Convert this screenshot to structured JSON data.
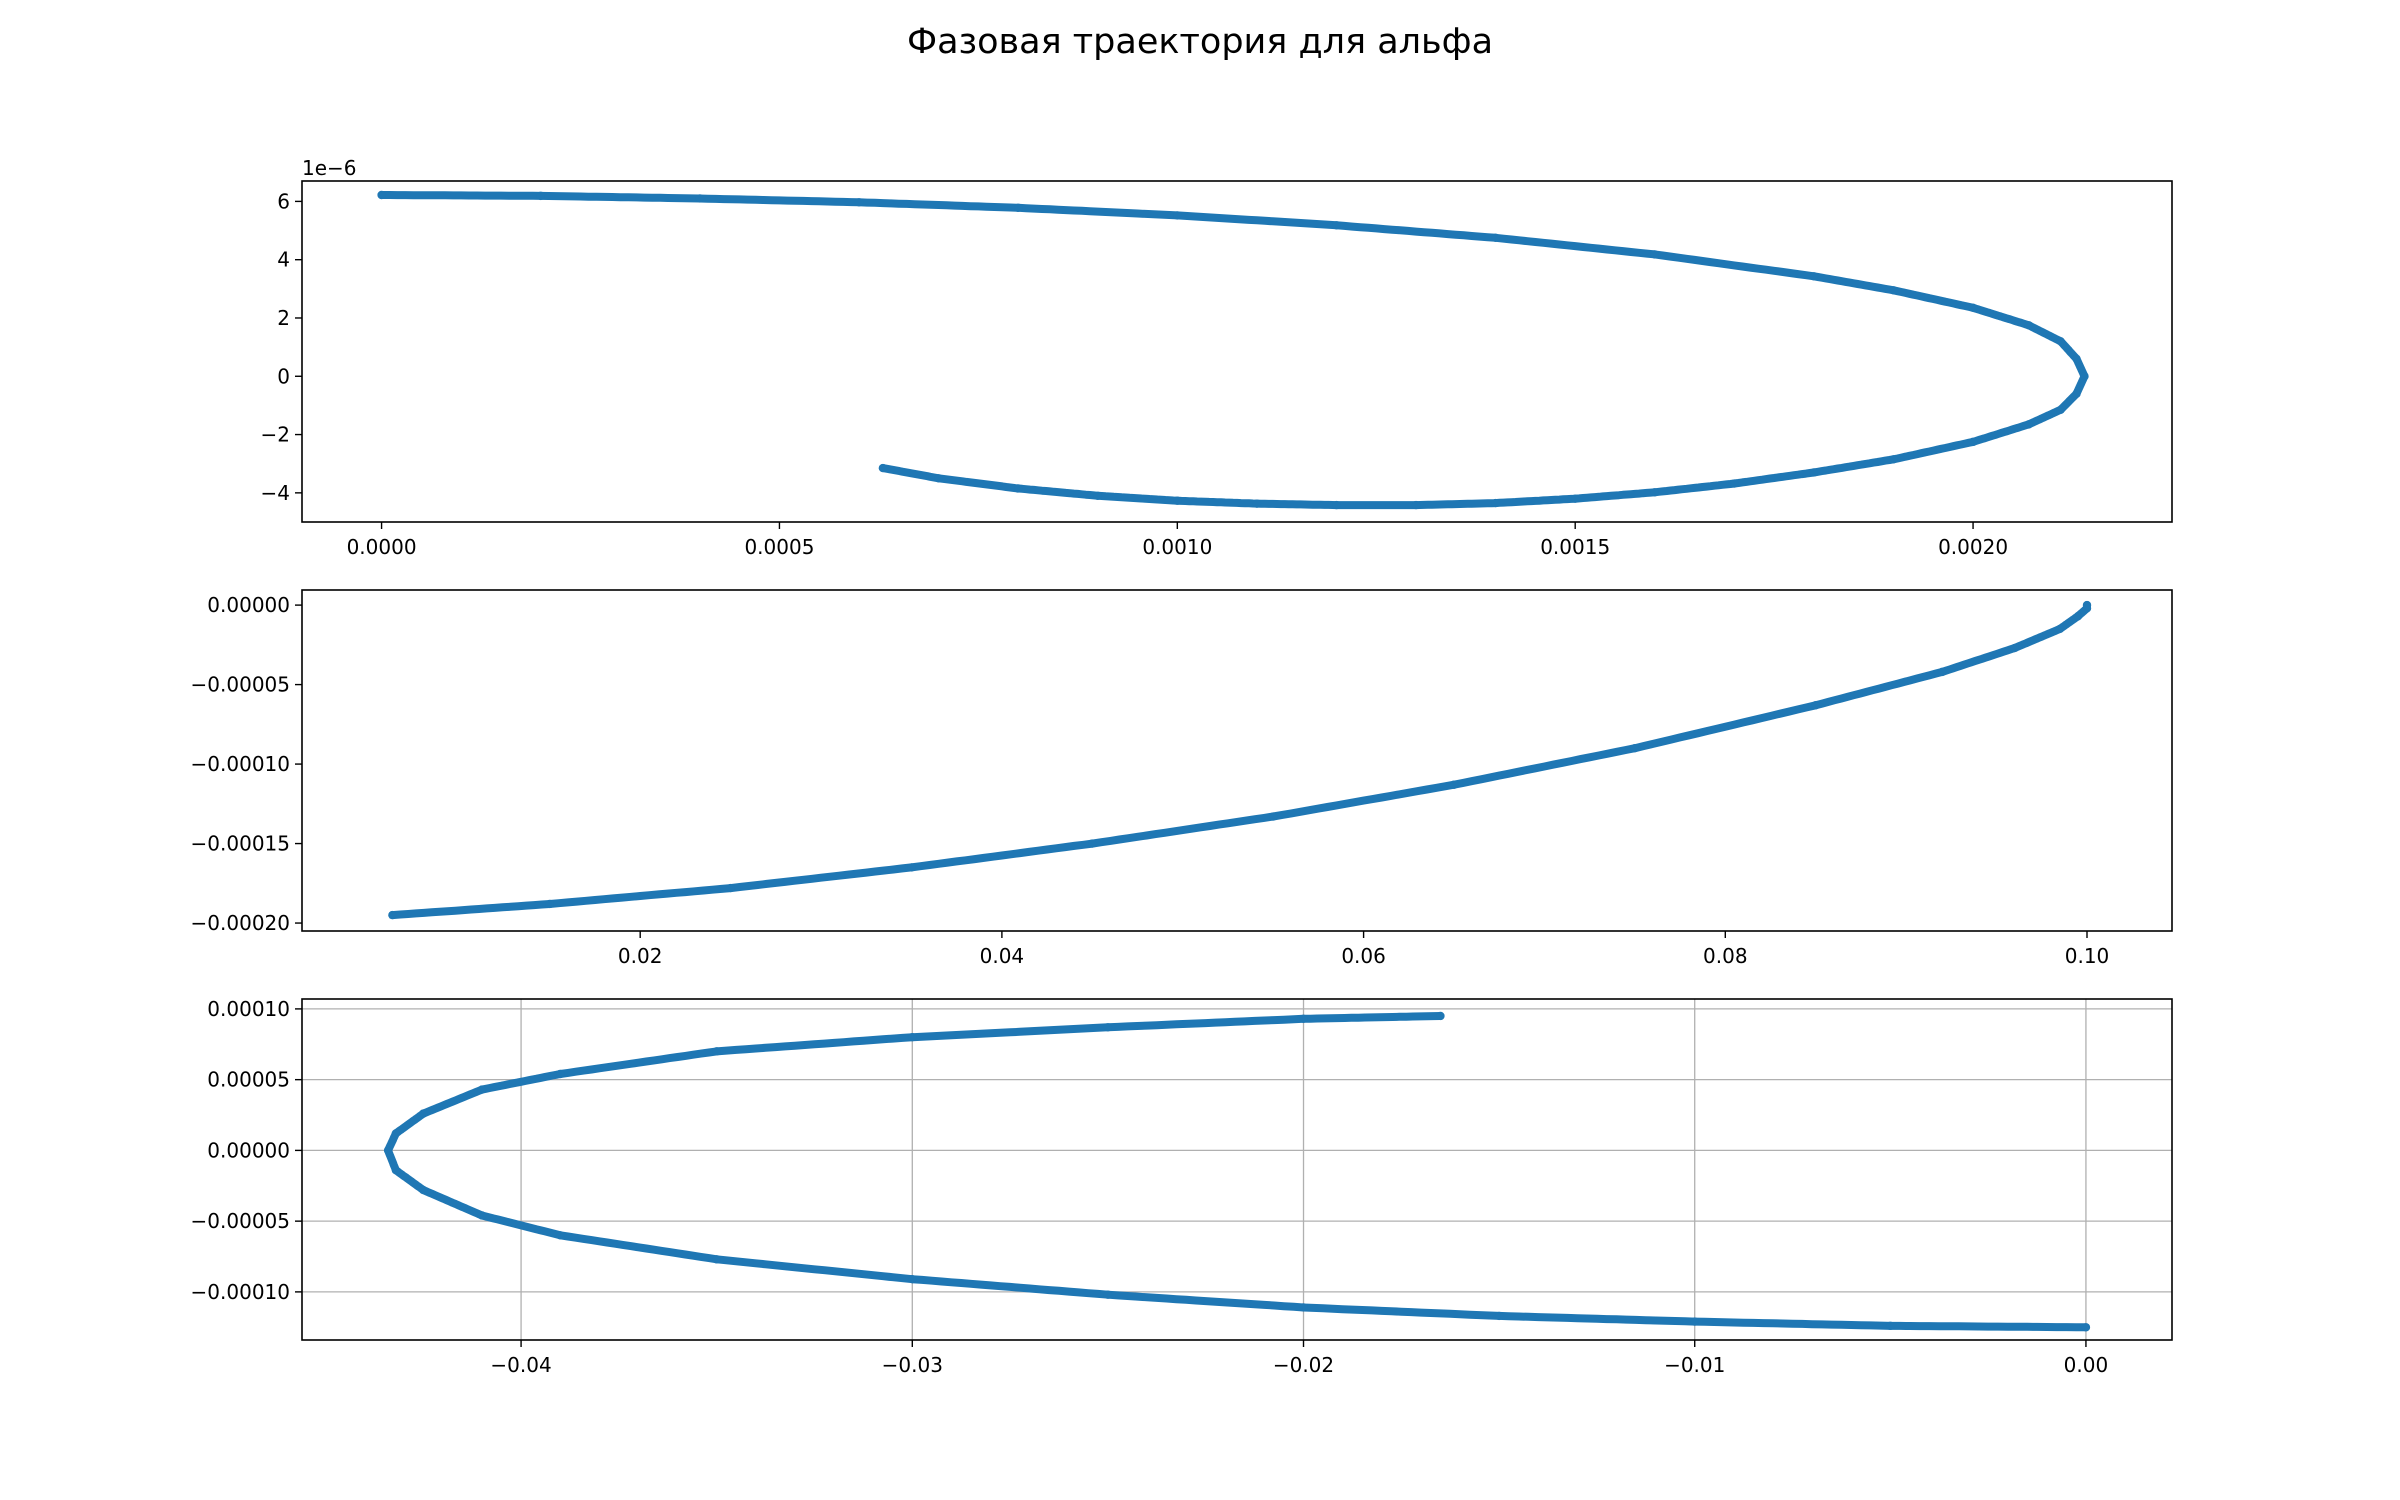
{
  "figure": {
    "title": "Фазовая траектория для альфа"
  },
  "colors": {
    "series": "#1f77b4",
    "grid": "#b0b0b0",
    "axes": "#000000"
  },
  "chart_data": [
    {
      "type": "scatter",
      "title": "",
      "xlabel": "",
      "ylabel": "",
      "offset_text": "1e−6",
      "grid": false,
      "xlim": [
        -0.0001,
        0.00225
      ],
      "ylim": [
        -5.0,
        6.7
      ],
      "xticks": [
        0.0,
        0.0005,
        0.001,
        0.0015,
        0.002
      ],
      "xtick_labels": [
        "0.0000",
        "0.0005",
        "0.0010",
        "0.0015",
        "0.0020"
      ],
      "yticks": [
        -4,
        -2,
        0,
        2,
        4,
        6
      ],
      "ytick_labels": [
        "−4",
        "−2",
        "0",
        "2",
        "4",
        "6"
      ],
      "series": [
        {
          "x": [
            0.0,
            0.0002,
            0.0004,
            0.0006,
            0.0008,
            0.001,
            0.0012,
            0.0014,
            0.0016,
            0.0018,
            0.0019,
            0.002,
            0.00207,
            0.00211,
            0.00213,
            0.00214,
            0.00213,
            0.00211,
            0.00207,
            0.002,
            0.0019,
            0.0018,
            0.0017,
            0.0016,
            0.0015,
            0.0014,
            0.0013,
            0.0012,
            0.0011,
            0.001,
            0.0009,
            0.0008,
            0.0007,
            0.00063
          ],
          "y": [
            6.22,
            6.19,
            6.1,
            5.97,
            5.78,
            5.52,
            5.18,
            4.75,
            4.18,
            3.43,
            2.95,
            2.35,
            1.75,
            1.2,
            0.6,
            0.0,
            -0.6,
            -1.15,
            -1.65,
            -2.25,
            -2.85,
            -3.3,
            -3.68,
            -3.98,
            -4.2,
            -4.35,
            -4.42,
            -4.42,
            -4.37,
            -4.27,
            -4.1,
            -3.85,
            -3.5,
            -3.15
          ]
        }
      ]
    },
    {
      "type": "scatter",
      "title": "",
      "xlabel": "",
      "ylabel": "",
      "offset_text": "",
      "grid": false,
      "xlim": [
        0.0013,
        0.1047
      ],
      "ylim": [
        -0.000205,
        9.5e-06
      ],
      "xticks": [
        0.02,
        0.04,
        0.06,
        0.08,
        0.1
      ],
      "xtick_labels": [
        "0.02",
        "0.04",
        "0.06",
        "0.08",
        "0.10"
      ],
      "yticks": [
        0.0,
        -5e-05,
        -0.0001,
        -0.00015,
        -0.0002
      ],
      "ytick_labels": [
        "0.00000",
        "−0.00005",
        "−0.00010",
        "−0.00015",
        "−0.00020"
      ],
      "series": [
        {
          "x": [
            0.0063,
            0.015,
            0.025,
            0.035,
            0.045,
            0.055,
            0.065,
            0.075,
            0.085,
            0.092,
            0.096,
            0.0985,
            0.0995,
            0.1,
            0.1
          ],
          "y": [
            -0.000195,
            -0.000188,
            -0.000178,
            -0.000165,
            -0.00015,
            -0.000133,
            -0.000113,
            -9e-05,
            -6.3e-05,
            -4.2e-05,
            -2.7e-05,
            -1.5e-05,
            -7e-06,
            -2e-06,
            0.0
          ]
        }
      ]
    },
    {
      "type": "scatter",
      "title": "",
      "xlabel": "",
      "ylabel": "",
      "offset_text": "",
      "grid": true,
      "xlim": [
        -0.0456,
        0.0022
      ],
      "ylim": [
        -0.000134,
        0.000107
      ],
      "xticks": [
        -0.04,
        -0.03,
        -0.02,
        -0.01,
        0.0
      ],
      "xtick_labels": [
        "−0.04",
        "−0.03",
        "−0.02",
        "−0.01",
        "0.00"
      ],
      "yticks": [
        0.0001,
        5e-05,
        0.0,
        -5e-05,
        -0.0001
      ],
      "ytick_labels": [
        "0.00010",
        "0.00005",
        "0.00000",
        "−0.00005",
        "−0.00010"
      ],
      "series": [
        {
          "x": [
            -0.0165,
            -0.02,
            -0.025,
            -0.03,
            -0.035,
            -0.039,
            -0.041,
            -0.0425,
            -0.0432,
            -0.0434,
            -0.0432,
            -0.0425,
            -0.041,
            -0.039,
            -0.035,
            -0.03,
            -0.025,
            -0.02,
            -0.015,
            -0.01,
            -0.005,
            0.0
          ],
          "y": [
            9.5e-05,
            9.3e-05,
            8.7e-05,
            8e-05,
            7e-05,
            5.4e-05,
            4.3e-05,
            2.6e-05,
            1.2e-05,
            0.0,
            -1.4e-05,
            -2.8e-05,
            -4.6e-05,
            -6e-05,
            -7.7e-05,
            -9.1e-05,
            -0.000102,
            -0.000111,
            -0.000117,
            -0.000121,
            -0.000124,
            -0.000125
          ]
        }
      ]
    }
  ]
}
